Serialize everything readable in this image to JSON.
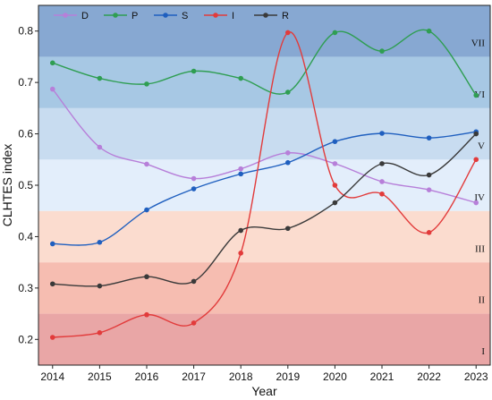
{
  "chart_data": {
    "type": "line",
    "xlabel": "Year",
    "ylabel": "CLHTES index",
    "x": [
      2014,
      2015,
      2016,
      2017,
      2018,
      2019,
      2020,
      2021,
      2022,
      2023
    ],
    "xlim": [
      2013.7,
      2023.3
    ],
    "ylim": [
      0.15,
      0.85
    ],
    "yticks": [
      0.2,
      0.3,
      0.4,
      0.5,
      0.6,
      0.7,
      0.8
    ],
    "legend": "top-left",
    "grid": false,
    "series": [
      {
        "name": "D",
        "color": "#b77fd9",
        "values": [
          0.687,
          0.574,
          0.541,
          0.513,
          0.532,
          0.563,
          0.542,
          0.507,
          0.491,
          0.466
        ]
      },
      {
        "name": "P",
        "color": "#2f9e52",
        "values": [
          0.738,
          0.708,
          0.697,
          0.722,
          0.708,
          0.681,
          0.797,
          0.761,
          0.8,
          0.675
        ]
      },
      {
        "name": "S",
        "color": "#1f5fbf",
        "values": [
          0.386,
          0.389,
          0.452,
          0.493,
          0.522,
          0.544,
          0.585,
          0.601,
          0.592,
          0.604
        ]
      },
      {
        "name": "I",
        "color": "#e23b3b",
        "values": [
          0.204,
          0.213,
          0.248,
          0.232,
          0.368,
          0.797,
          0.5,
          0.483,
          0.408,
          0.55
        ]
      },
      {
        "name": "R",
        "color": "#3a3a3a",
        "values": [
          0.308,
          0.304,
          0.322,
          0.313,
          0.412,
          0.416,
          0.466,
          0.542,
          0.52,
          0.6
        ]
      }
    ],
    "bands": [
      {
        "label": "I",
        "from": 0.15,
        "to": 0.25,
        "color": "#e9a6a6"
      },
      {
        "label": "II",
        "from": 0.25,
        "to": 0.35,
        "color": "#f6bdb1"
      },
      {
        "label": "III",
        "from": 0.35,
        "to": 0.45,
        "color": "#fbdccf"
      },
      {
        "label": "IV",
        "from": 0.45,
        "to": 0.55,
        "color": "#e3eefb"
      },
      {
        "label": "V",
        "from": 0.55,
        "to": 0.65,
        "color": "#c8dcf0"
      },
      {
        "label": "VI",
        "from": 0.65,
        "to": 0.75,
        "color": "#a7c8e4"
      },
      {
        "label": "VII",
        "from": 0.75,
        "to": 0.85,
        "color": "#87a8d2"
      }
    ]
  }
}
